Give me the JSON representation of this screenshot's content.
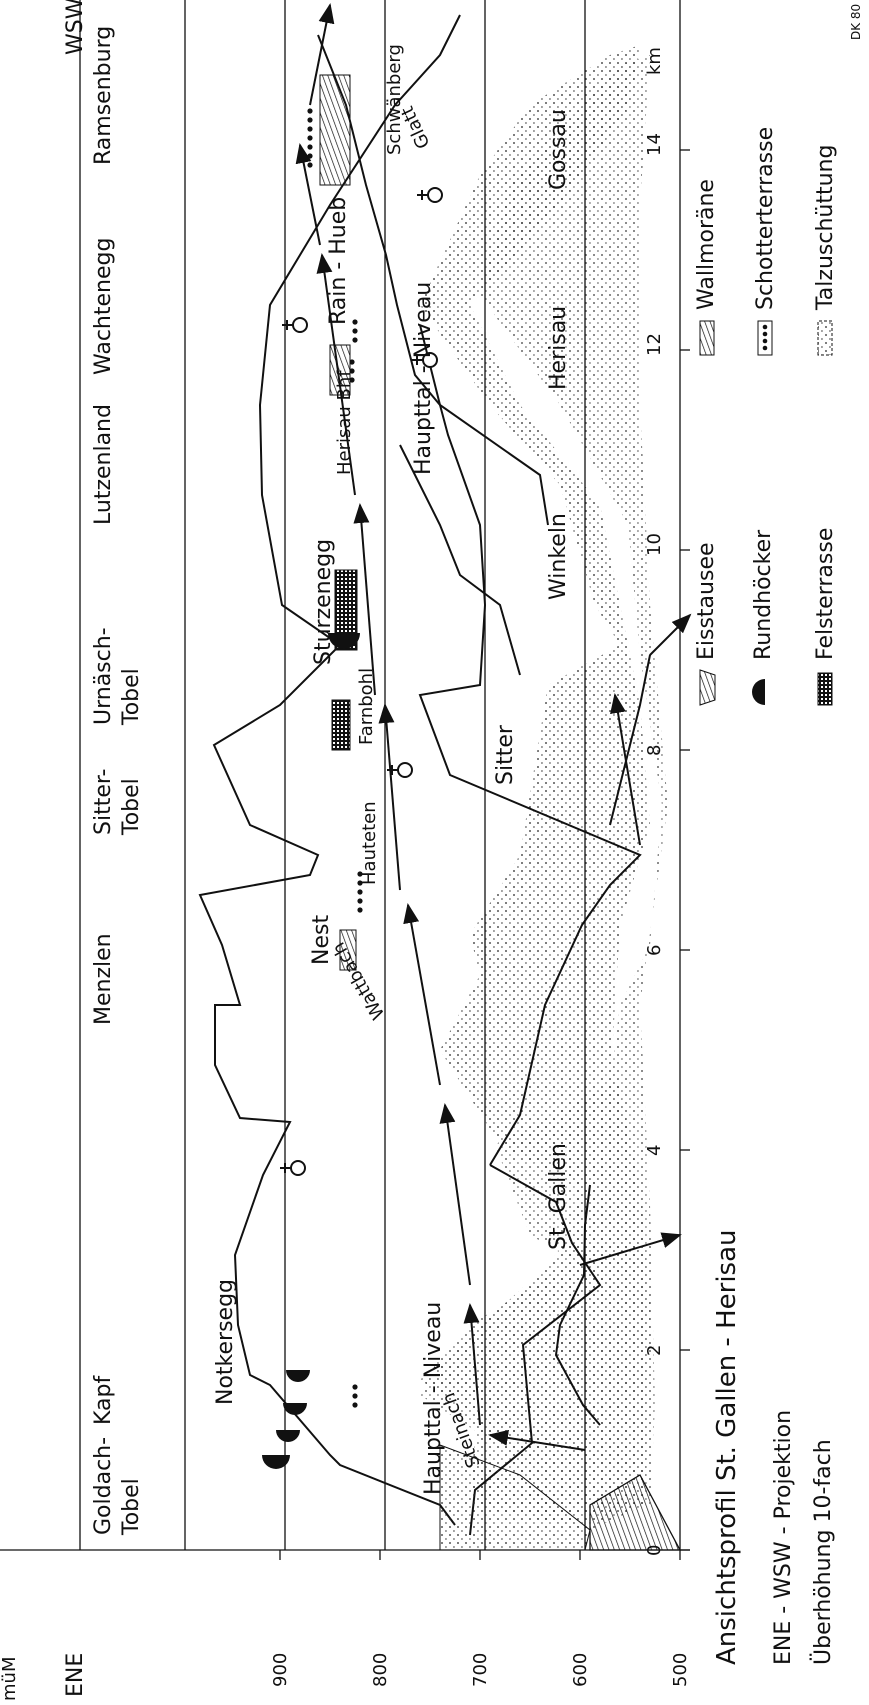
{
  "ends": {
    "left": "ENE",
    "right": "WSW"
  },
  "y_axis": {
    "label": "müM",
    "ticks": [
      "500",
      "600",
      "700",
      "800",
      "900"
    ],
    "values": [
      500,
      600,
      700,
      800,
      900
    ]
  },
  "x_axis": {
    "unit": "km",
    "ticks": [
      "0",
      "2",
      "4",
      "6",
      "8",
      "10",
      "12",
      "14"
    ],
    "values": [
      0,
      2,
      4,
      6,
      8,
      10,
      12,
      14
    ]
  },
  "top_places": [
    {
      "name": "Goldach-",
      "name2": "Tobel",
      "km": 0.5
    },
    {
      "name": "Kapf",
      "name2": "",
      "km": 1.6
    },
    {
      "name": "Menzlen",
      "name2": "",
      "km": 5.6
    },
    {
      "name": "Sitter-",
      "name2": "Tobel",
      "km": 7.5
    },
    {
      "name": "Urnäsch-",
      "name2": "Tobel",
      "km": 8.6
    },
    {
      "name": "Lutzenland",
      "name2": "",
      "km": 10.6
    },
    {
      "name": "Wachtenegg",
      "name2": "",
      "km": 12.1
    },
    {
      "name": "Ramsenburg",
      "name2": "",
      "km": 14.2
    }
  ],
  "inner_labels": {
    "notkersegg": "Notkersegg",
    "haupttal_left": "Haupttal - Niveau",
    "steinach": "Steinach",
    "nest": "Nest",
    "hauteten": "Hauteten",
    "wattbach": "Wattbach",
    "farnbohl": "Farnbohl",
    "sitter": "Sitter",
    "sturzenegg": "Sturzenegg",
    "herisau_bhf": "Herisau Bhf",
    "haupttal_right": "Haupttal - Niveau",
    "rain_hueb": "Rain - Hueb",
    "schwanberg": "Schwänberg",
    "glatt": "Glatt"
  },
  "bottom_places": [
    {
      "name": "St. Gallen",
      "km": 3.4
    },
    {
      "name": "Winkeln",
      "km": 9.9
    },
    {
      "name": "Herisau",
      "km": 12.0
    },
    {
      "name": "Gossau",
      "km": 14.0
    }
  ],
  "legend": {
    "eisstausee": "Eisstausee",
    "rundhoecker": "Rundhöcker",
    "felsterrasse": "Felsterrasse",
    "wallmoraene": "Wallmoräne",
    "schotterterrasse": "Schotterterrasse",
    "talzuschuettung": "Talzuschüttung"
  },
  "caption": {
    "title": "Ansichtsprofil  St. Gallen - Herisau",
    "line2": "ENE - WSW - Projektion",
    "line3": "Überhöhung  10-fach"
  },
  "corner_code": "DK 80"
}
